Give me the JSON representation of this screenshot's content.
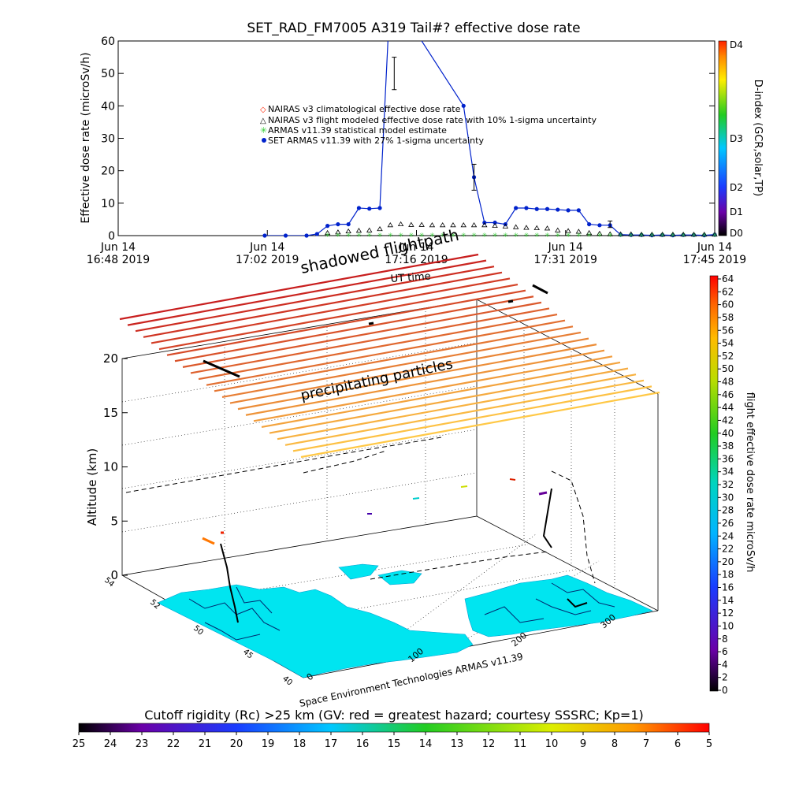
{
  "header": {
    "title": "SET_RAD_FM7005   A319 Tail#? effective dose rate"
  },
  "top_chart": {
    "ylabel": "Effective dose rate (microSv/h)",
    "yticks": [
      "0",
      "10",
      "20",
      "30",
      "40",
      "50",
      "60"
    ],
    "xticks": [
      {
        "line1": "Jun 14",
        "line2": "16:48 2019"
      },
      {
        "line1": "Jun 14",
        "line2": "17:02 2019"
      },
      {
        "line1": "Jun 14",
        "line2": "17:16 2019"
      },
      {
        "line1": "Jun 14",
        "line2": "17:31 2019"
      },
      {
        "line1": "Jun 14",
        "line2": "17:45 2019"
      }
    ],
    "legend": [
      "NAIRAS v3 climatological effective dose rate",
      "NAIRAS v3 flight modeled effective dose rate with 10% 1-sigma uncertainty",
      "ARMAS v11.39 statistical model estimate",
      "SET ARMAS v11.39 with 27% 1-sigma uncertainty"
    ],
    "right_axis_label": "D-index (GCR,solar,TP)",
    "right_ticks": [
      "D4",
      "D3",
      "D2",
      "D1",
      "D0"
    ]
  },
  "chart_data": [
    {
      "type": "line",
      "title": "SET_RAD_FM7005   A319 Tail#? effective dose rate",
      "ylabel": "Effective dose rate (microSv/h)",
      "ylim": [
        0,
        60
      ],
      "x": [
        "17:02",
        "17:04",
        "17:06",
        "17:07",
        "17:08",
        "17:09",
        "17:10",
        "17:11",
        "17:12",
        "17:13",
        "17:14",
        "17:15",
        "17:16",
        "17:17",
        "17:18",
        "17:19",
        "17:20",
        "17:21",
        "17:22",
        "17:23",
        "17:24",
        "17:25",
        "17:26",
        "17:27",
        "17:28",
        "17:29",
        "17:30",
        "17:31",
        "17:32",
        "17:33",
        "17:34",
        "17:35",
        "17:36",
        "17:37",
        "17:38",
        "17:39",
        "17:40",
        "17:41",
        "17:42",
        "17:43",
        "17:44",
        "17:45"
      ],
      "series": [
        {
          "name": "SET ARMAS v11.39 with 27% 1-sigma uncertainty",
          "color": "#0022cc",
          "values": [
            0,
            0,
            0,
            0.5,
            3,
            3.5,
            3.5,
            8.5,
            8.3,
            8.5,
            75,
            null,
            null,
            null,
            null,
            null,
            null,
            40,
            18,
            4,
            4,
            3.5,
            8.5,
            8.5,
            8.2,
            8.2,
            8,
            7.8,
            7.8,
            3.5,
            3.2,
            3.2,
            0.3,
            0.2,
            0.2,
            0.1,
            0.2,
            0.1,
            0.2,
            0.2,
            0.1,
            0.3
          ]
        },
        {
          "name": "NAIRAS v3 flight modeled effective dose rate with 10% 1-sigma uncertainty",
          "color": "#000000",
          "values": [
            null,
            null,
            null,
            null,
            0.8,
            1,
            1.3,
            1.5,
            1.6,
            2,
            3.2,
            3.5,
            3.3,
            3.3,
            3.2,
            3.2,
            3.2,
            3.2,
            3.2,
            3.2,
            3,
            2.8,
            2.6,
            2.4,
            2.3,
            2.2,
            1.6,
            1.4,
            1.2,
            0.8,
            0.6,
            0.4,
            0.4,
            0.4,
            0.3,
            0.3,
            0.3,
            0.3,
            0.3,
            0.3,
            0.3,
            0.3
          ]
        },
        {
          "name": "ARMAS v11.39 statistical model estimate",
          "color": "#33cc33",
          "values": [
            null,
            null,
            null,
            null,
            0.3,
            0.3,
            0.3,
            0.3,
            0.3,
            0.3,
            0.3,
            0.3,
            0.3,
            0.3,
            0.3,
            0.3,
            0.3,
            0.3,
            0.3,
            0.3,
            0.3,
            0.3,
            0.3,
            0.3,
            0.3,
            0.3,
            0.3,
            0.3,
            0.3,
            0.3,
            0.3,
            0.3,
            0.3,
            0.3,
            0.3,
            0.3,
            0.3,
            0.3,
            0.3,
            0.3,
            0.3,
            0.3
          ]
        }
      ],
      "grid": false,
      "legend_position": "center"
    },
    {
      "type": "scatter",
      "zlabel": "Altitude (km)",
      "zticks": [
        "0",
        "5",
        "10",
        "15",
        "20"
      ],
      "longitude_ticks": [
        "0",
        "100",
        "200",
        "300"
      ],
      "latitude_ticks": [
        "40",
        "45",
        "50",
        "52",
        "54"
      ],
      "annotations": [
        "shadowed flightpath",
        "UT time",
        "precipitating particles",
        "Space Environment Technologies ARMAS v11.39"
      ],
      "colorbar": {
        "label": "flight effective dose rate microSv/h",
        "ticks": [
          "64",
          "62",
          "60",
          "58",
          "56",
          "54",
          "52",
          "50",
          "48",
          "46",
          "44",
          "42",
          "40",
          "38",
          "36",
          "34",
          "32",
          "30",
          "28",
          "26",
          "24",
          "22",
          "20",
          "18",
          "16",
          "14",
          "12",
          "10",
          "8",
          "6",
          "4",
          "2",
          "0"
        ]
      }
    }
  ],
  "bottom_colorbar": {
    "label": "Cutoff rigidity (Rc) >25 km (GV: red = greatest hazard; courtesy SSSRC; Kp=1)",
    "ticks": [
      "25",
      "24",
      "23",
      "22",
      "21",
      "20",
      "19",
      "18",
      "17",
      "16",
      "15",
      "14",
      "13",
      "12",
      "11",
      "10",
      "9",
      "8",
      "7",
      "6",
      "5"
    ]
  }
}
